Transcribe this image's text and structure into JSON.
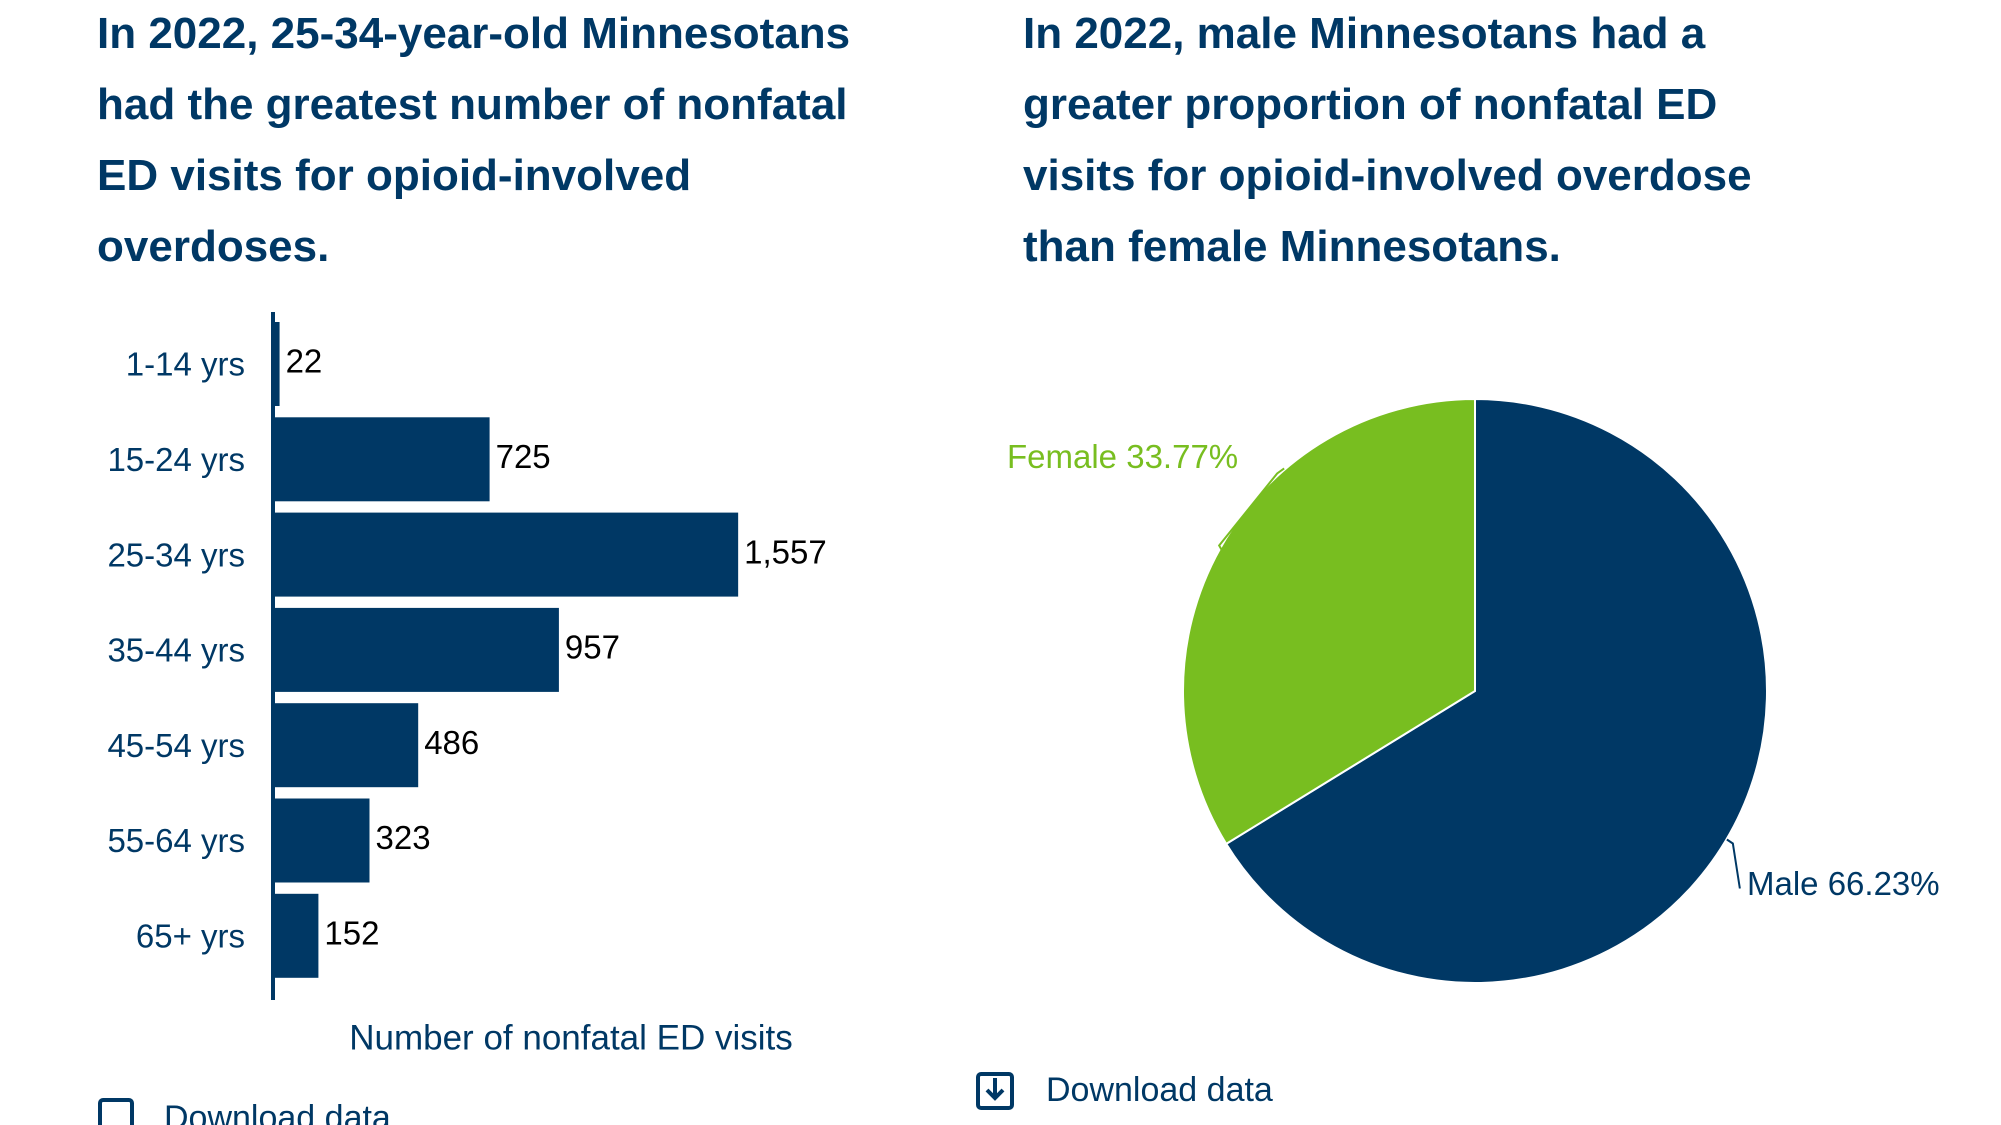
{
  "chart_data": [
    {
      "type": "bar",
      "orientation": "horizontal",
      "title": "In 2022, 25-34-year-old Minnesotans had the greatest number of nonfatal ED visits for opioid-involved overdoses.",
      "categories": [
        "1-14 yrs",
        "15-24 yrs",
        "25-34 yrs",
        "35-44 yrs",
        "45-54 yrs",
        "55-64 yrs",
        "65+ yrs"
      ],
      "values": [
        22,
        725,
        1557,
        957,
        486,
        323,
        152
      ],
      "value_labels": [
        "22",
        "725",
        "1,557",
        "957",
        "486",
        "323",
        "152"
      ],
      "color": "#003865",
      "xlim": [
        0,
        1600
      ],
      "xlabel": "Number of nonfatal ED visits",
      "link": "Download data"
    },
    {
      "type": "pie",
      "title": "In 2022, male Minnesotans had a greater proportion of nonfatal ED visits for opioid-involved overdose than female Minnesotans.",
      "categories": [
        "Male",
        "Female"
      ],
      "values": [
        66.23,
        33.77
      ],
      "value_labels": [
        "66.23%",
        "33.77%"
      ],
      "colors": [
        "#003865",
        "#78be20"
      ],
      "link": "Download data"
    }
  ]
}
